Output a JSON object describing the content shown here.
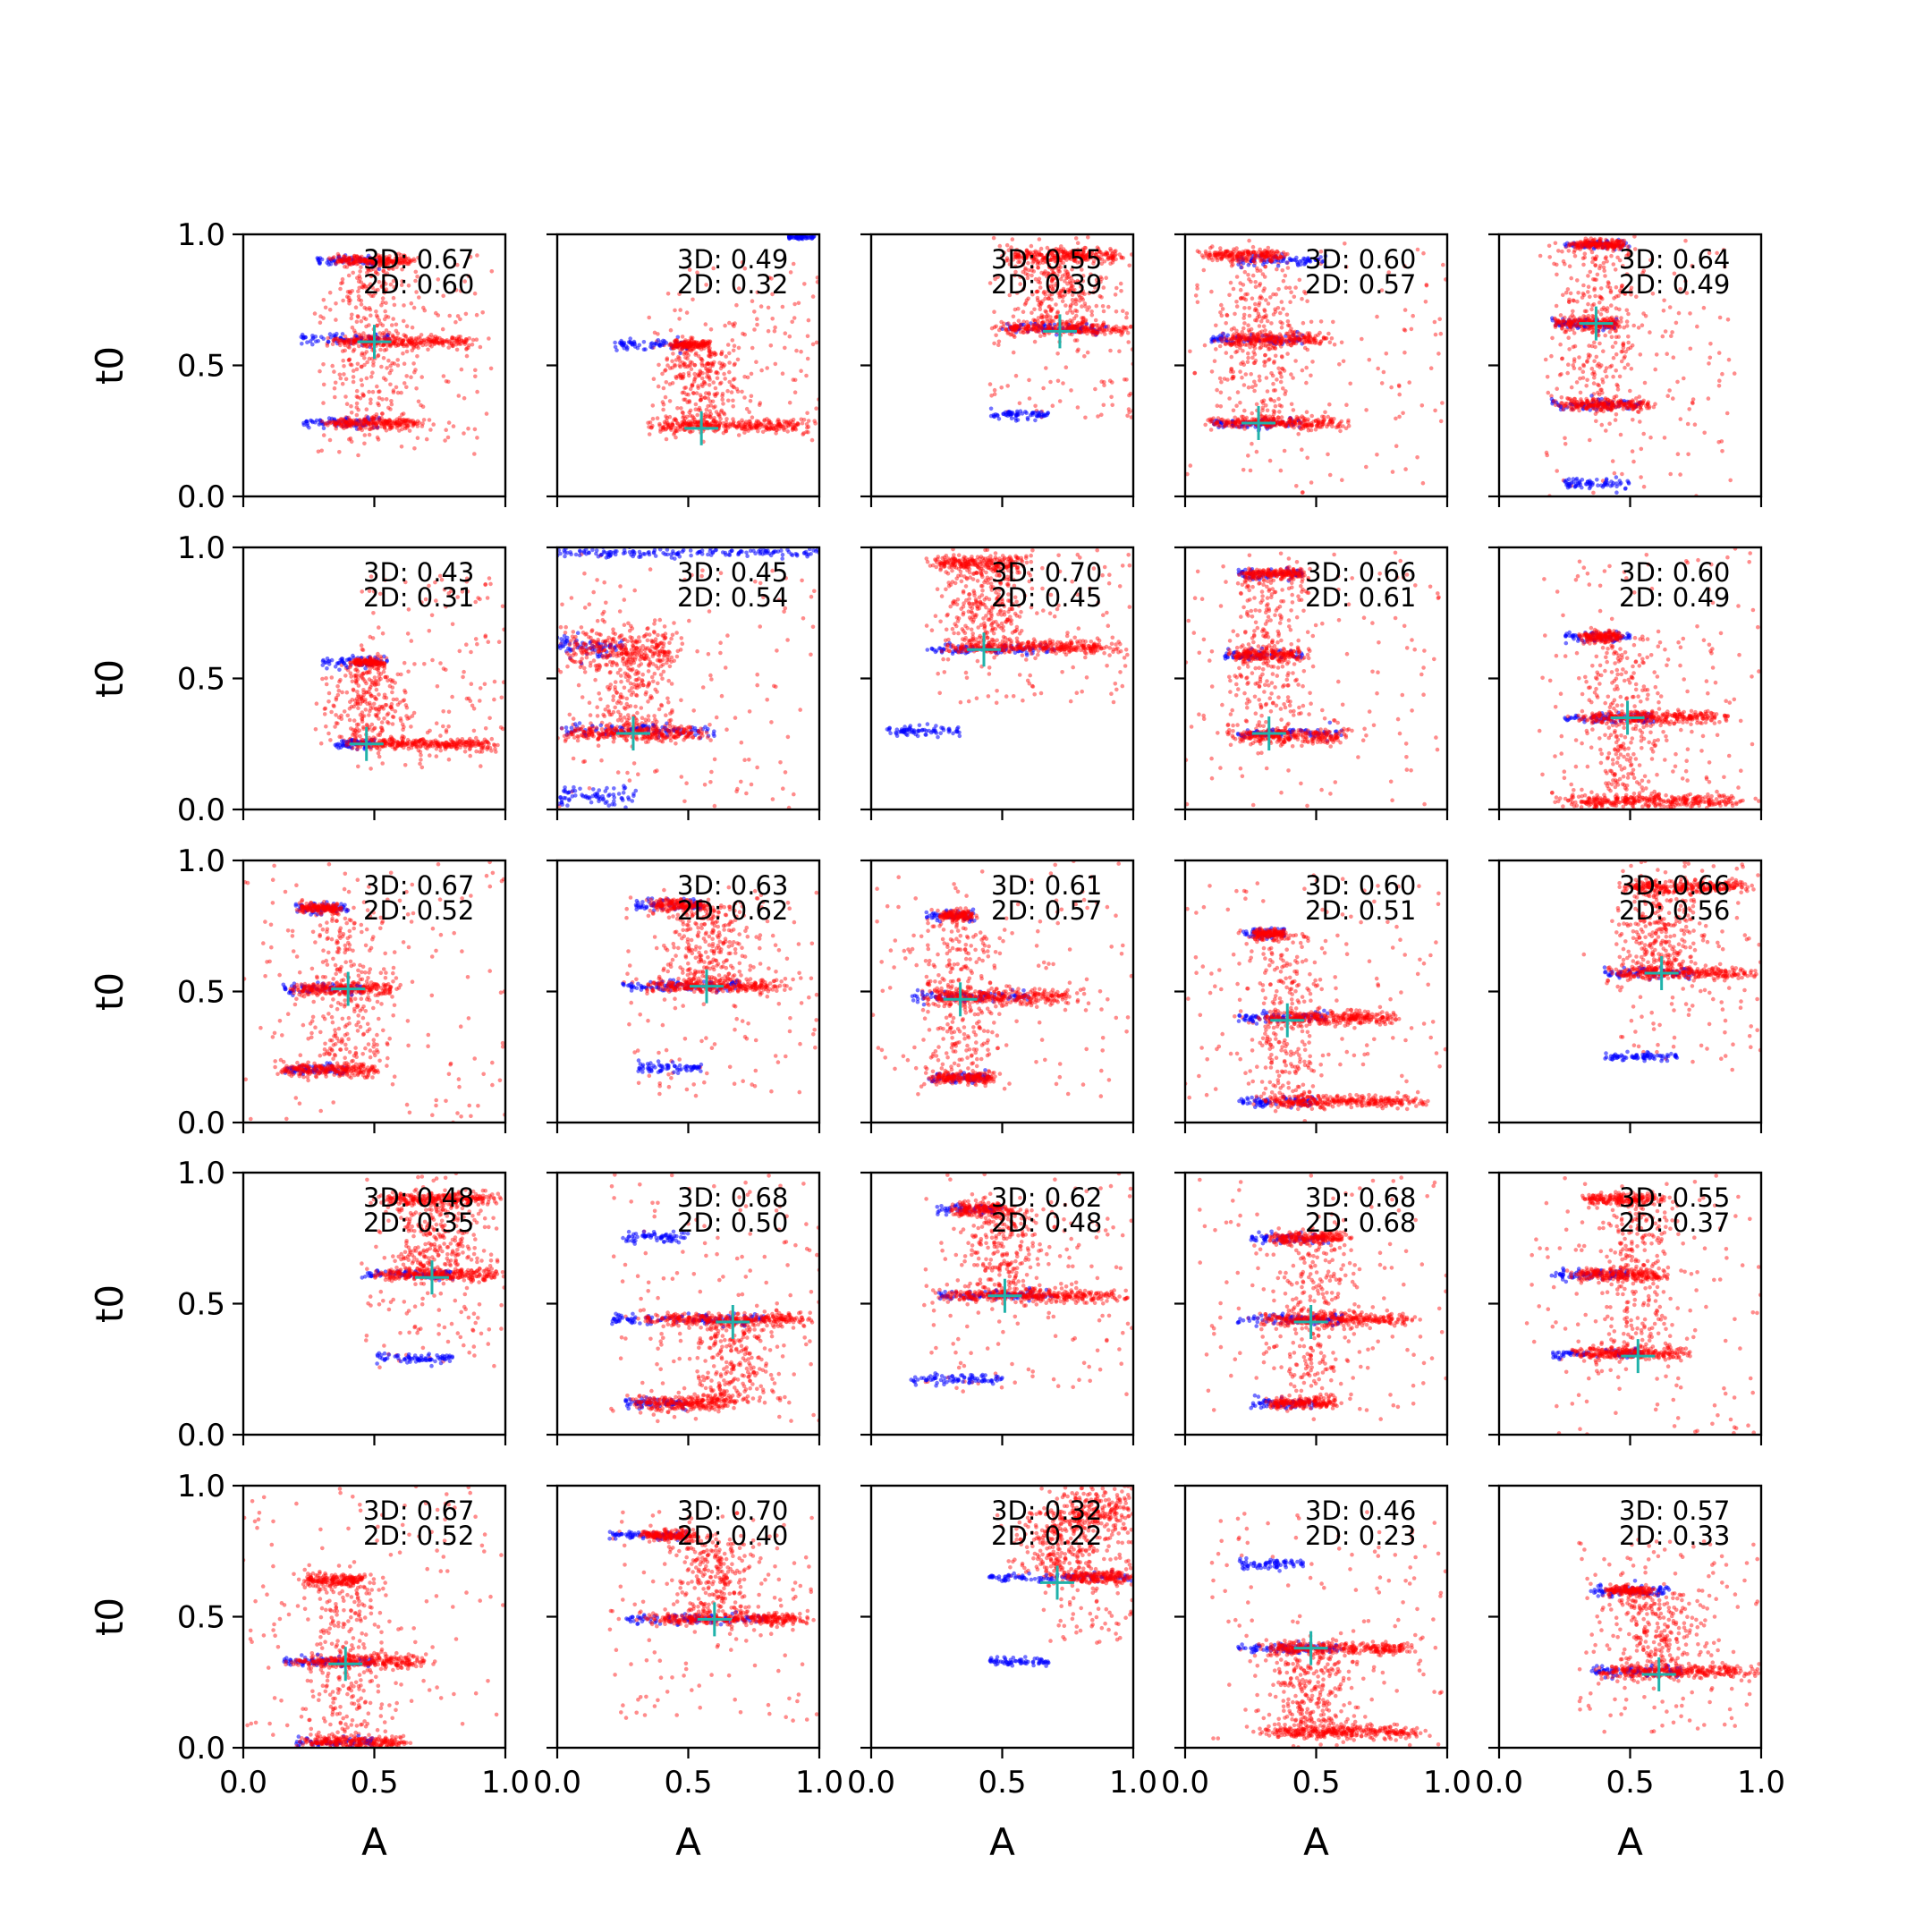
{
  "figure": {
    "background": "#ffffff"
  },
  "chart_data": {
    "type": "scatter",
    "layout": {
      "rows": 5,
      "cols": 5,
      "sharex": true,
      "sharey": true
    },
    "xlabel": "A",
    "ylabel": "t0",
    "xlim": [
      0,
      1
    ],
    "ylim": [
      0,
      1
    ],
    "xticks": [
      0.0,
      0.5,
      1.0
    ],
    "yticks": [
      0.0,
      0.5,
      1.0
    ],
    "tick_labels": {
      "x": [
        "0.0",
        "0.5",
        "1.0"
      ],
      "y": [
        "0.0",
        "0.5",
        "1.0"
      ]
    },
    "colors": {
      "red_points": "#ff0000",
      "blue_points": "#0000ff",
      "marker": "#20b2aa"
    },
    "panels": [
      {
        "score_3d": "3D: 0.67",
        "score_2d": "2D: 0.60",
        "marker": [
          0.5,
          0.59
        ],
        "blue": [
          [
            0.28,
            0.52,
            0.9,
            0.01
          ],
          [
            0.22,
            0.56,
            0.6,
            0.01
          ],
          [
            0.22,
            0.52,
            0.28,
            0.01
          ]
        ],
        "red": [
          [
            0.32,
            0.68,
            0.9,
            0.01
          ],
          [
            0.3,
            0.9,
            0.59,
            0.012
          ],
          [
            0.3,
            0.7,
            0.28,
            0.01
          ]
        ],
        "spread": [
          0.28,
          0.95,
          0.15,
          0.92
        ]
      },
      {
        "score_3d": "3D: 0.49",
        "score_2d": "2D: 0.32",
        "marker": [
          0.55,
          0.26
        ],
        "blue": [
          [
            0.22,
            0.5,
            0.58,
            0.01
          ],
          [
            0.88,
            0.98,
            0.99,
            0.005
          ]
        ],
        "red": [
          [
            0.32,
            1.0,
            0.27,
            0.012
          ],
          [
            0.42,
            0.6,
            0.58,
            0.01
          ]
        ],
        "spread": [
          0.35,
          1.0,
          0.2,
          0.9
        ]
      },
      {
        "score_3d": "3D: 0.55",
        "score_2d": "2D: 0.39",
        "marker": [
          0.72,
          0.63
        ],
        "blue": [
          [
            0.45,
            0.68,
            0.31,
            0.01
          ],
          [
            0.5,
            0.9,
            0.64,
            0.01
          ]
        ],
        "red": [
          [
            0.45,
            1.0,
            0.64,
            0.012
          ],
          [
            0.48,
            1.0,
            0.92,
            0.012
          ]
        ],
        "spread": [
          0.45,
          1.0,
          0.3,
          1.0
        ]
      },
      {
        "score_3d": "3D: 0.60",
        "score_2d": "2D: 0.57",
        "marker": [
          0.28,
          0.28
        ],
        "blue": [
          [
            0.2,
            0.55,
            0.9,
            0.01
          ],
          [
            0.1,
            0.45,
            0.28,
            0.01
          ],
          [
            0.1,
            0.45,
            0.6,
            0.01
          ]
        ],
        "red": [
          [
            0.1,
            0.58,
            0.6,
            0.012
          ],
          [
            0.05,
            0.65,
            0.28,
            0.012
          ],
          [
            0.05,
            0.4,
            0.92,
            0.012
          ]
        ],
        "spread": [
          0.0,
          1.0,
          0.0,
          1.0
        ]
      },
      {
        "score_3d": "3D: 0.64",
        "score_2d": "2D: 0.49",
        "marker": [
          0.37,
          0.66
        ],
        "blue": [
          [
            0.25,
            0.5,
            0.96,
            0.008
          ],
          [
            0.2,
            0.55,
            0.35,
            0.01
          ],
          [
            0.25,
            0.5,
            0.05,
            0.01
          ],
          [
            0.2,
            0.45,
            0.66,
            0.01
          ]
        ],
        "red": [
          [
            0.2,
            0.5,
            0.66,
            0.012
          ],
          [
            0.2,
            0.6,
            0.35,
            0.012
          ],
          [
            0.25,
            0.5,
            0.96,
            0.01
          ]
        ],
        "spread": [
          0.18,
          0.9,
          0.0,
          1.0
        ]
      },
      {
        "score_3d": "3D: 0.43",
        "score_2d": "2D: 0.31",
        "marker": [
          0.47,
          0.25
        ],
        "blue": [
          [
            0.3,
            0.55,
            0.56,
            0.01
          ],
          [
            0.35,
            0.5,
            0.25,
            0.008
          ]
        ],
        "red": [
          [
            0.35,
            1.0,
            0.25,
            0.012
          ],
          [
            0.4,
            0.55,
            0.56,
            0.008
          ]
        ],
        "spread": [
          0.4,
          1.0,
          0.15,
          0.9
        ]
      },
      {
        "score_3d": "3D: 0.45",
        "score_2d": "2D: 0.54",
        "marker": [
          0.29,
          0.29
        ],
        "blue": [
          [
            0.0,
            1.0,
            0.98,
            0.008
          ],
          [
            0.0,
            0.6,
            0.3,
            0.012
          ],
          [
            0.0,
            0.25,
            0.62,
            0.025
          ],
          [
            0.0,
            0.3,
            0.05,
            0.02
          ]
        ],
        "red": [
          [
            0.0,
            0.6,
            0.29,
            0.015
          ],
          [
            0.0,
            0.5,
            0.62,
            0.04
          ]
        ],
        "spread": [
          0.0,
          1.0,
          0.0,
          1.0
        ]
      },
      {
        "score_3d": "3D: 0.70",
        "score_2d": "2D: 0.45",
        "marker": [
          0.43,
          0.61
        ],
        "blue": [
          [
            0.05,
            0.35,
            0.3,
            0.01
          ],
          [
            0.2,
            0.7,
            0.61,
            0.01
          ]
        ],
        "red": [
          [
            0.25,
            1.0,
            0.62,
            0.012
          ],
          [
            0.2,
            0.62,
            0.94,
            0.015
          ]
        ],
        "spread": [
          0.25,
          1.0,
          0.4,
          1.0
        ]
      },
      {
        "score_3d": "3D: 0.66",
        "score_2d": "2D: 0.61",
        "marker": [
          0.32,
          0.29
        ],
        "blue": [
          [
            0.2,
            0.6,
            0.29,
            0.01
          ],
          [
            0.15,
            0.45,
            0.59,
            0.01
          ],
          [
            0.2,
            0.45,
            0.9,
            0.01
          ]
        ],
        "red": [
          [
            0.15,
            0.65,
            0.28,
            0.015
          ],
          [
            0.15,
            0.48,
            0.59,
            0.012
          ],
          [
            0.2,
            0.48,
            0.9,
            0.01
          ]
        ],
        "spread": [
          0.0,
          1.0,
          0.0,
          1.0
        ]
      },
      {
        "score_3d": "3D: 0.60",
        "score_2d": "2D: 0.49",
        "marker": [
          0.49,
          0.35
        ],
        "blue": [
          [
            0.25,
            0.5,
            0.66,
            0.01
          ],
          [
            0.25,
            0.6,
            0.35,
            0.01
          ]
        ],
        "red": [
          [
            0.25,
            0.9,
            0.35,
            0.012
          ],
          [
            0.2,
            0.95,
            0.03,
            0.012
          ],
          [
            0.3,
            0.48,
            0.66,
            0.01
          ]
        ],
        "spread": [
          0.15,
          1.0,
          0.0,
          1.0
        ]
      },
      {
        "score_3d": "3D: 0.67",
        "score_2d": "2D: 0.52",
        "marker": [
          0.4,
          0.51
        ],
        "blue": [
          [
            0.15,
            0.45,
            0.51,
            0.01
          ],
          [
            0.15,
            0.4,
            0.2,
            0.01
          ],
          [
            0.2,
            0.4,
            0.82,
            0.01
          ]
        ],
        "red": [
          [
            0.15,
            0.62,
            0.51,
            0.012
          ],
          [
            0.12,
            0.55,
            0.2,
            0.012
          ],
          [
            0.2,
            0.38,
            0.82,
            0.01
          ]
        ],
        "spread": [
          0.0,
          1.0,
          0.0,
          1.0
        ]
      },
      {
        "score_3d": "3D: 0.63",
        "score_2d": "2D: 0.62",
        "marker": [
          0.57,
          0.52
        ],
        "blue": [
          [
            0.25,
            0.7,
            0.52,
            0.01
          ],
          [
            0.3,
            0.55,
            0.21,
            0.01
          ],
          [
            0.3,
            0.55,
            0.83,
            0.01
          ]
        ],
        "red": [
          [
            0.3,
            0.9,
            0.52,
            0.012
          ],
          [
            0.35,
            0.6,
            0.83,
            0.012
          ]
        ],
        "spread": [
          0.25,
          1.0,
          0.1,
          0.9
        ]
      },
      {
        "score_3d": "3D: 0.61",
        "score_2d": "2D: 0.57",
        "marker": [
          0.34,
          0.47
        ],
        "blue": [
          [
            0.15,
            0.6,
            0.48,
            0.01
          ],
          [
            0.2,
            0.45,
            0.17,
            0.01
          ],
          [
            0.2,
            0.4,
            0.79,
            0.01
          ]
        ],
        "red": [
          [
            0.15,
            0.85,
            0.48,
            0.015
          ],
          [
            0.2,
            0.5,
            0.17,
            0.01
          ],
          [
            0.25,
            0.4,
            0.79,
            0.01
          ]
        ],
        "spread": [
          0.0,
          1.0,
          0.1,
          1.0
        ]
      },
      {
        "score_3d": "3D: 0.60",
        "score_2d": "2D: 0.51",
        "marker": [
          0.39,
          0.39
        ],
        "blue": [
          [
            0.2,
            0.55,
            0.4,
            0.01
          ],
          [
            0.2,
            0.5,
            0.08,
            0.01
          ],
          [
            0.22,
            0.38,
            0.72,
            0.01
          ]
        ],
        "red": [
          [
            0.25,
            0.85,
            0.4,
            0.012
          ],
          [
            0.25,
            0.95,
            0.08,
            0.012
          ],
          [
            0.25,
            0.4,
            0.72,
            0.01
          ]
        ],
        "spread": [
          0.0,
          1.0,
          0.0,
          0.95
        ]
      },
      {
        "score_3d": "3D: 0.66",
        "score_2d": "2D: 0.56",
        "marker": [
          0.62,
          0.57
        ],
        "blue": [
          [
            0.4,
            0.75,
            0.57,
            0.01
          ],
          [
            0.4,
            0.68,
            0.25,
            0.008
          ]
        ],
        "red": [
          [
            0.4,
            1.0,
            0.57,
            0.012
          ],
          [
            0.45,
            1.0,
            0.9,
            0.012
          ]
        ],
        "spread": [
          0.4,
          1.0,
          0.2,
          1.0
        ]
      },
      {
        "score_3d": "3D: 0.48",
        "score_2d": "2D: 0.35",
        "marker": [
          0.72,
          0.6
        ],
        "blue": [
          [
            0.45,
            0.8,
            0.61,
            0.008
          ],
          [
            0.5,
            0.8,
            0.29,
            0.008
          ]
        ],
        "red": [
          [
            0.45,
            1.0,
            0.61,
            0.012
          ],
          [
            0.5,
            1.0,
            0.9,
            0.012
          ]
        ],
        "spread": [
          0.45,
          1.0,
          0.25,
          1.0
        ]
      },
      {
        "score_3d": "3D: 0.68",
        "score_2d": "2D: 0.50",
        "marker": [
          0.67,
          0.43
        ],
        "blue": [
          [
            0.25,
            0.5,
            0.75,
            0.01
          ],
          [
            0.2,
            0.8,
            0.44,
            0.01
          ],
          [
            0.25,
            0.5,
            0.12,
            0.01
          ]
        ],
        "red": [
          [
            0.3,
            1.0,
            0.44,
            0.012
          ],
          [
            0.25,
            0.7,
            0.12,
            0.015
          ]
        ],
        "spread": [
          0.2,
          1.0,
          0.05,
          1.0
        ]
      },
      {
        "score_3d": "3D: 0.62",
        "score_2d": "2D: 0.48",
        "marker": [
          0.51,
          0.53
        ],
        "blue": [
          [
            0.15,
            0.5,
            0.21,
            0.01
          ],
          [
            0.25,
            0.5,
            0.86,
            0.01
          ],
          [
            0.25,
            0.7,
            0.53,
            0.01
          ]
        ],
        "red": [
          [
            0.2,
            1.0,
            0.53,
            0.012
          ],
          [
            0.3,
            0.55,
            0.86,
            0.012
          ]
        ],
        "spread": [
          0.2,
          1.0,
          0.15,
          1.0
        ]
      },
      {
        "score_3d": "3D: 0.68",
        "score_2d": "2D: 0.68",
        "marker": [
          0.48,
          0.43
        ],
        "blue": [
          [
            0.25,
            0.55,
            0.75,
            0.01
          ],
          [
            0.2,
            0.6,
            0.44,
            0.01
          ],
          [
            0.25,
            0.5,
            0.12,
            0.01
          ]
        ],
        "red": [
          [
            0.25,
            0.9,
            0.44,
            0.012
          ],
          [
            0.3,
            0.65,
            0.75,
            0.012
          ],
          [
            0.3,
            0.6,
            0.12,
            0.01
          ]
        ],
        "spread": [
          0.05,
          1.0,
          0.05,
          1.0
        ]
      },
      {
        "score_3d": "3D: 0.55",
        "score_2d": "2D: 0.37",
        "marker": [
          0.53,
          0.3
        ],
        "blue": [
          [
            0.2,
            0.5,
            0.61,
            0.01
          ],
          [
            0.2,
            0.55,
            0.31,
            0.01
          ]
        ],
        "red": [
          [
            0.25,
            0.75,
            0.31,
            0.012
          ],
          [
            0.25,
            0.65,
            0.61,
            0.012
          ],
          [
            0.3,
            0.65,
            0.9,
            0.012
          ]
        ],
        "spread": [
          0.1,
          1.0,
          0.0,
          1.0
        ]
      },
      {
        "score_3d": "3D: 0.67",
        "score_2d": "2D: 0.52",
        "marker": [
          0.39,
          0.32
        ],
        "blue": [
          [
            0.15,
            0.5,
            0.33,
            0.01
          ],
          [
            0.2,
            0.5,
            0.02,
            0.01
          ]
        ],
        "red": [
          [
            0.15,
            0.75,
            0.33,
            0.012
          ],
          [
            0.2,
            0.5,
            0.64,
            0.012
          ],
          [
            0.2,
            0.65,
            0.02,
            0.012
          ]
        ],
        "spread": [
          0.0,
          1.0,
          0.0,
          1.0
        ]
      },
      {
        "score_3d": "3D: 0.70",
        "score_2d": "2D: 0.40",
        "marker": [
          0.6,
          0.49
        ],
        "blue": [
          [
            0.2,
            0.5,
            0.81,
            0.008
          ],
          [
            0.25,
            0.8,
            0.49,
            0.01
          ]
        ],
        "red": [
          [
            0.3,
            1.0,
            0.49,
            0.012
          ],
          [
            0.3,
            0.55,
            0.81,
            0.01
          ]
        ],
        "spread": [
          0.2,
          1.0,
          0.1,
          0.9
        ]
      },
      {
        "score_3d": "3D: 0.32",
        "score_2d": "2D: 0.22",
        "marker": [
          0.71,
          0.63
        ],
        "blue": [
          [
            0.45,
            1.0,
            0.65,
            0.008
          ],
          [
            0.45,
            0.68,
            0.33,
            0.008
          ]
        ],
        "red": [
          [
            0.7,
            1.0,
            0.65,
            0.012
          ],
          [
            0.7,
            1.0,
            0.9,
            0.04
          ]
        ],
        "spread": [
          0.65,
          1.0,
          0.4,
          1.0
        ]
      },
      {
        "score_3d": "3D: 0.46",
        "score_2d": "2D: 0.23",
        "marker": [
          0.48,
          0.38
        ],
        "blue": [
          [
            0.2,
            0.6,
            0.38,
            0.01
          ],
          [
            0.2,
            0.45,
            0.7,
            0.01
          ]
        ],
        "red": [
          [
            0.25,
            0.9,
            0.38,
            0.012
          ],
          [
            0.25,
            0.95,
            0.06,
            0.012
          ]
        ],
        "spread": [
          0.1,
          1.0,
          0.0,
          0.9
        ]
      },
      {
        "score_3d": "3D: 0.57",
        "score_2d": "2D: 0.33",
        "marker": [
          0.61,
          0.28
        ],
        "blue": [
          [
            0.35,
            0.65,
            0.6,
            0.01
          ],
          [
            0.35,
            0.7,
            0.29,
            0.01
          ]
        ],
        "red": [
          [
            0.35,
            1.0,
            0.29,
            0.012
          ],
          [
            0.4,
            0.6,
            0.6,
            0.01
          ]
        ],
        "spread": [
          0.3,
          1.0,
          0.05,
          0.8
        ]
      }
    ]
  }
}
